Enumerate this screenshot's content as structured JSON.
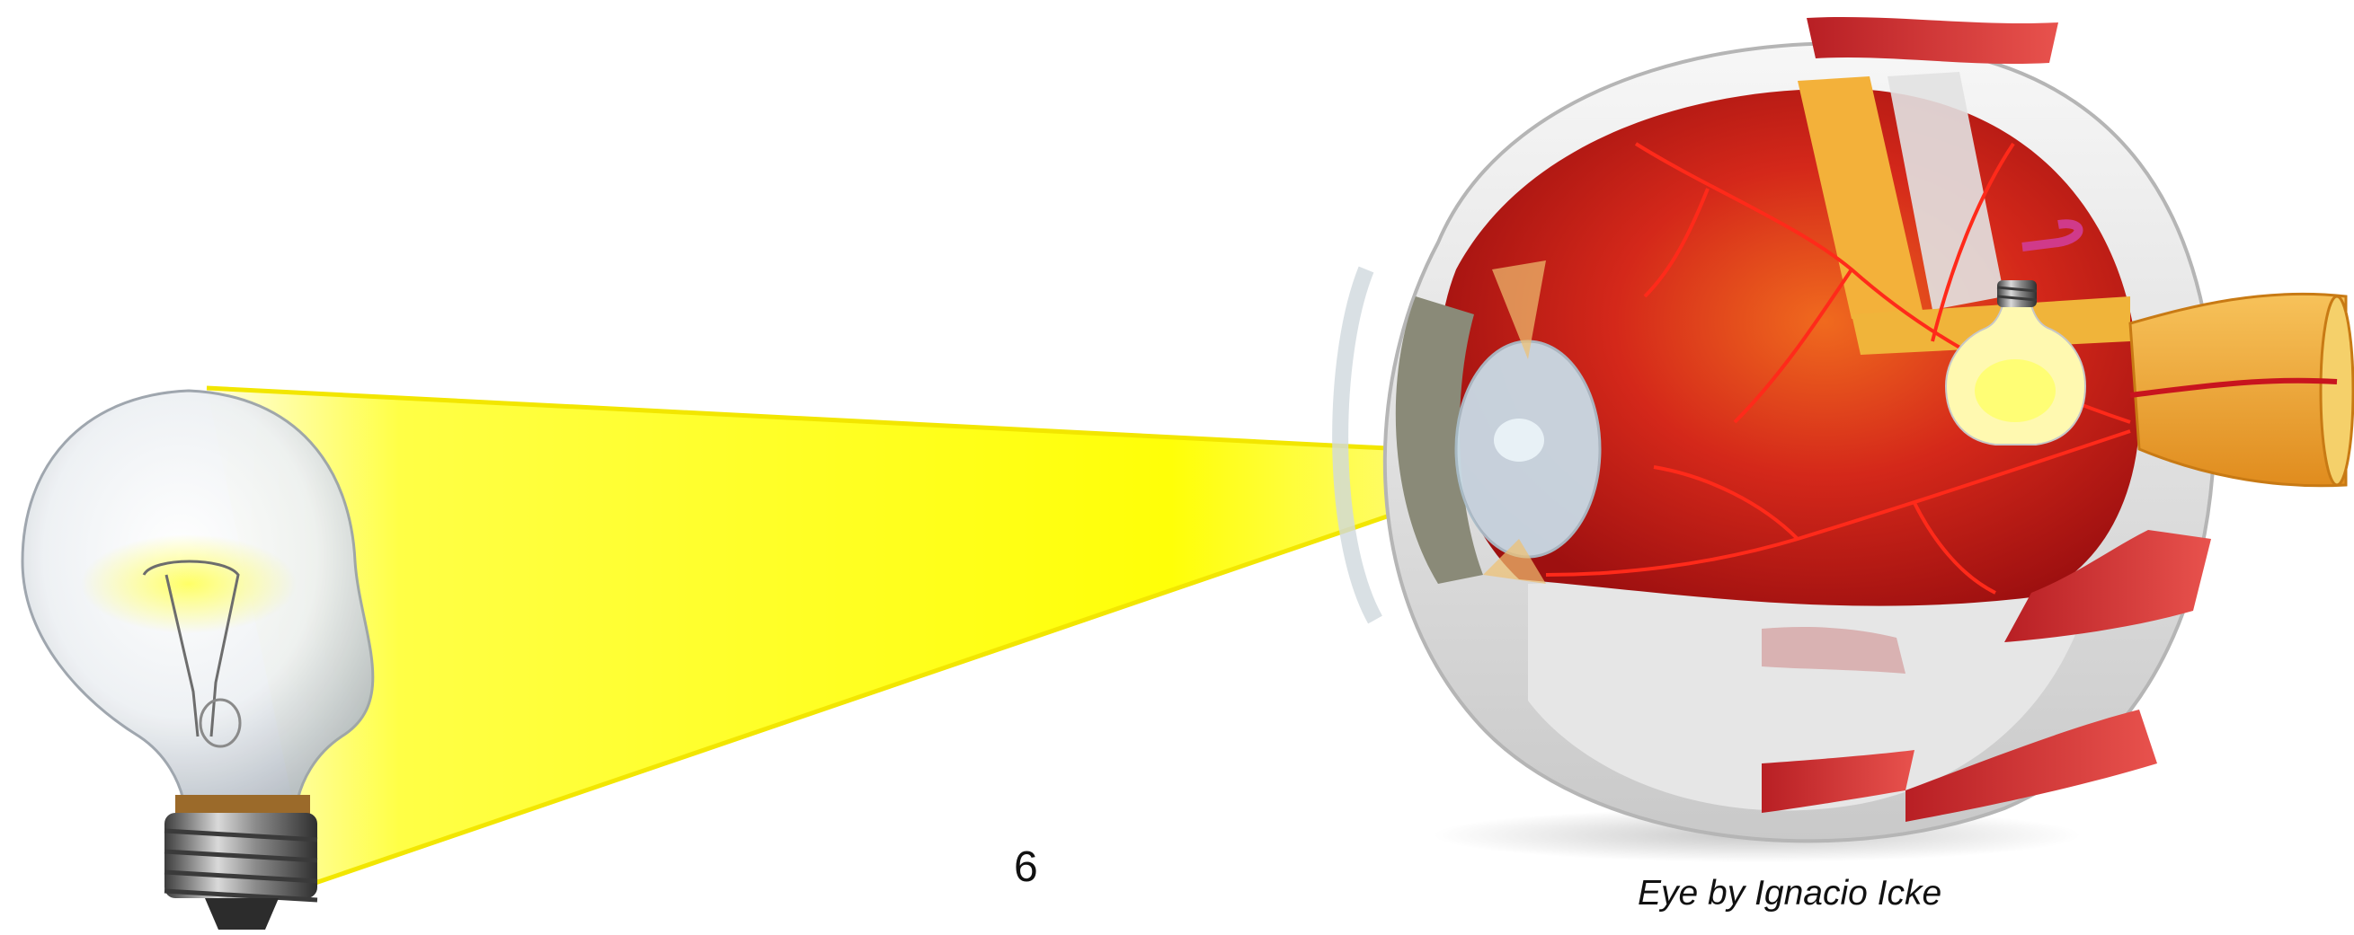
{
  "page_number": "6",
  "credit": "Eye by Ignacio Icke",
  "colors": {
    "light_beam": "#ffff00",
    "light_edge": "#f2e600",
    "sclera": "#dcdcdc",
    "retina_red": "#c8141e",
    "vessel": "#ff2a1a",
    "muscle": "#d63a3a",
    "optic_nerve": "#f0a830",
    "lens": "#c9dbe6",
    "iris": "#8a8a78"
  },
  "icons": [
    "light-bulb-icon",
    "eye-cross-section-icon",
    "retinal-image-bulb-icon"
  ]
}
